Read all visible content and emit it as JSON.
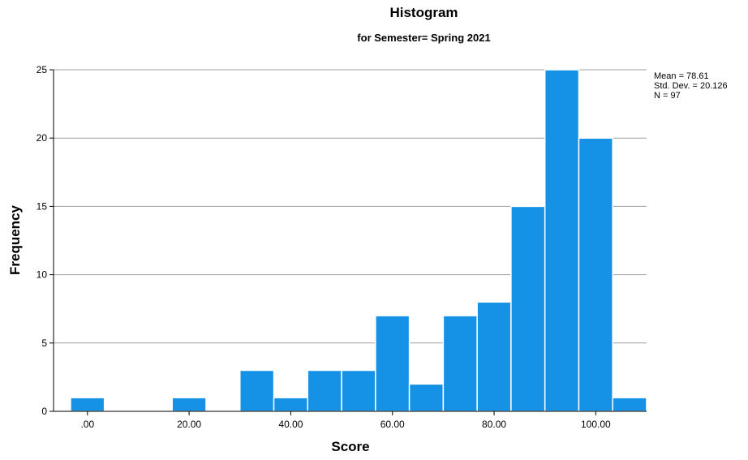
{
  "chart_data": {
    "type": "bar",
    "title": "Histogram",
    "subtitle": "for Semester= Spring 2021",
    "xlabel": "Score",
    "ylabel": "Frequency",
    "x_tick_labels": [
      ".00",
      "20.00",
      "40.00",
      "60.00",
      "80.00",
      "100.00"
    ],
    "x_tick_values": [
      0,
      20,
      40,
      60,
      80,
      100
    ],
    "y_tick_values": [
      0,
      5,
      10,
      15,
      20,
      25
    ],
    "ylim": [
      0,
      25
    ],
    "xlim": [
      -6.67,
      110
    ],
    "bin_width": 6.67,
    "bins": [
      {
        "x_start": -3.33,
        "x_end": 3.33,
        "value": 1
      },
      {
        "x_start": 3.33,
        "x_end": 10.0,
        "value": 0
      },
      {
        "x_start": 10.0,
        "x_end": 16.67,
        "value": 0
      },
      {
        "x_start": 16.67,
        "x_end": 23.33,
        "value": 1
      },
      {
        "x_start": 23.33,
        "x_end": 30.0,
        "value": 0
      },
      {
        "x_start": 30.0,
        "x_end": 36.67,
        "value": 3
      },
      {
        "x_start": 36.67,
        "x_end": 43.33,
        "value": 1
      },
      {
        "x_start": 43.33,
        "x_end": 50.0,
        "value": 3
      },
      {
        "x_start": 50.0,
        "x_end": 56.67,
        "value": 3
      },
      {
        "x_start": 56.67,
        "x_end": 63.33,
        "value": 7
      },
      {
        "x_start": 63.33,
        "x_end": 70.0,
        "value": 2
      },
      {
        "x_start": 70.0,
        "x_end": 76.67,
        "value": 7
      },
      {
        "x_start": 76.67,
        "x_end": 83.33,
        "value": 8
      },
      {
        "x_start": 83.33,
        "x_end": 90.0,
        "value": 15
      },
      {
        "x_start": 90.0,
        "x_end": 96.67,
        "value": 25
      },
      {
        "x_start": 96.67,
        "x_end": 103.33,
        "value": 20
      },
      {
        "x_start": 103.33,
        "x_end": 110.0,
        "value": 1
      }
    ],
    "stats": {
      "mean": "Mean = 78.61",
      "std_dev": "Std. Dev. = 20.126",
      "n": "N = 97"
    },
    "grid": true,
    "colors": {
      "bar_fill": "#1591E5",
      "bar_edge": "#ffffff",
      "grid": "#a0a0a0",
      "axis": "#000000"
    }
  }
}
